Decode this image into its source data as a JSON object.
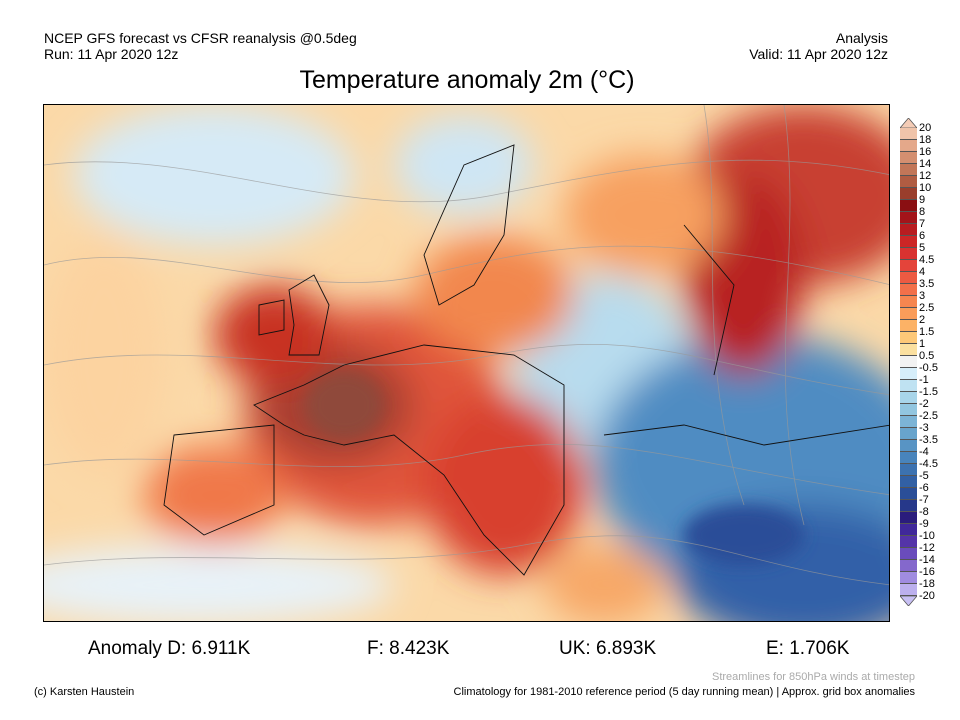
{
  "header": {
    "source": "NCEP GFS forecast vs CFSR reanalysis @0.5deg",
    "run": "Run: 11 Apr 2020 12z",
    "mode": "Analysis",
    "valid": "Valid: 11 Apr 2020 12z",
    "title": "Temperature anomaly 2m (°C)"
  },
  "colorbar": {
    "labels": [
      "20",
      "18",
      "16",
      "14",
      "12",
      "10",
      "9",
      "8",
      "7",
      "6",
      "5",
      "4.5",
      "4",
      "3.5",
      "3",
      "2.5",
      "2",
      "1.5",
      "1",
      "0.5",
      "-0.5",
      "-1",
      "-1.5",
      "-2",
      "-2.5",
      "-3",
      "-3.5",
      "-4",
      "-4.5",
      "-5",
      "-6",
      "-7",
      "-8",
      "-9",
      "-10",
      "-12",
      "-14",
      "-16",
      "-18",
      "-20"
    ],
    "colors": [
      "#f0c4aa",
      "#e4a88a",
      "#d48f70",
      "#c27658",
      "#b05c42",
      "#9a3e2c",
      "#8a0f12",
      "#a3141a",
      "#b81c20",
      "#cc2626",
      "#d93230",
      "#e4443a",
      "#ec5a42",
      "#f2704a",
      "#f68650",
      "#fa9c5a",
      "#fcb266",
      "#fdc878",
      "#fbe0a0",
      "#f2f2f2",
      "#d6eefa",
      "#bfe2f2",
      "#a8d5ea",
      "#92c6e0",
      "#7cb4d6",
      "#68a4cc",
      "#5894c4",
      "#4884bc",
      "#3c72b0",
      "#3260a4",
      "#2a4e98",
      "#26388a",
      "#2a1c7c",
      "#40289a",
      "#5434a8",
      "#6a4cbc",
      "#8468cc",
      "#a08ce0",
      "#bcb0ee"
    ],
    "over_color": "#f4ccb6",
    "under_color": "#c8c0f4"
  },
  "anomalies": {
    "d": "Anomaly D: 6.911K",
    "f": "F: 8.423K",
    "uk": "UK: 6.893K",
    "e": "E: 1.706K"
  },
  "footer": {
    "streamlines": "Streamlines for 850hPa winds at timestep",
    "copyright": "(c) Karsten Haustein",
    "climatology": "Climatology for 1981-2010 reference period (5 day running mean) | Approx. grid box anomalies"
  }
}
